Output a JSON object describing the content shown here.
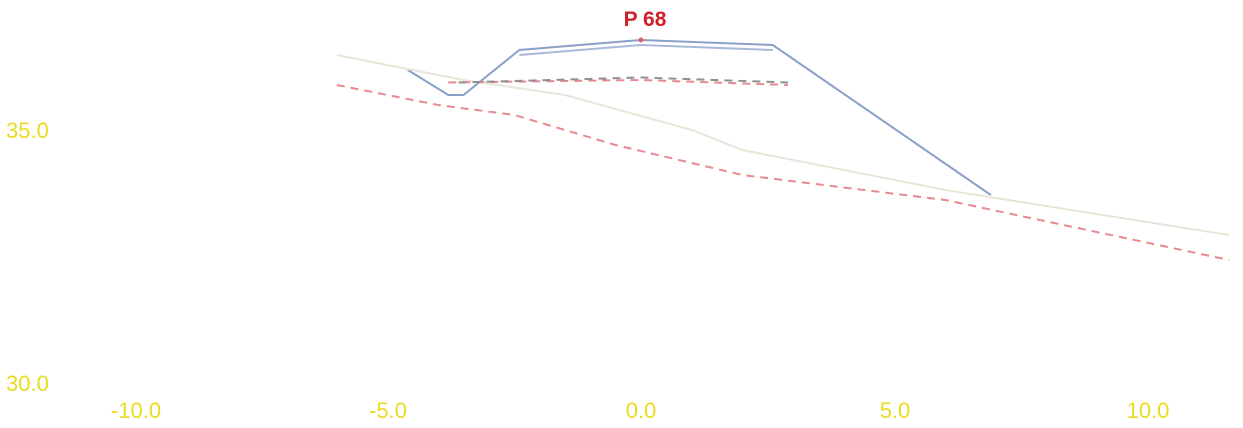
{
  "section": {
    "title": "P 68",
    "title_color": "#d0202a",
    "axis_label_color": "#e8dc1e",
    "x_axis": {
      "range": [
        -10.5,
        11.6
      ],
      "tick_labels": [
        "-10.0",
        "-5.0",
        "0.0",
        "5.0",
        "10.0"
      ],
      "tick_values": [
        -10,
        -5,
        0,
        5,
        10
      ]
    },
    "y_axis": {
      "range": [
        30,
        37.3
      ],
      "tick_labels": [
        "35.0",
        "30.0"
      ],
      "tick_values": [
        35,
        30
      ]
    }
  },
  "chart_data": {
    "type": "line",
    "series": [
      {
        "key": "design",
        "color": "#8aa0c8",
        "style": "solid",
        "points": [
          [
            -4.6,
            36.2
          ],
          [
            -3.8,
            35.7
          ],
          [
            -3.5,
            35.7
          ],
          [
            -2.4,
            36.6
          ],
          [
            0,
            36.8
          ],
          [
            2.6,
            36.7
          ],
          [
            6.9,
            33.7
          ]
        ]
      },
      {
        "key": "design-inner",
        "color": "#a8b8d8",
        "style": "solid",
        "points": [
          [
            -2.4,
            36.5
          ],
          [
            0,
            36.7
          ],
          [
            2.6,
            36.6
          ]
        ]
      },
      {
        "key": "existing-ground",
        "color": "#e8e4d8",
        "style": "solid",
        "points": [
          [
            -6,
            36.5
          ],
          [
            -3.5,
            36.0
          ],
          [
            -1.5,
            35.7
          ],
          [
            1,
            35.0
          ],
          [
            2,
            34.6
          ],
          [
            6,
            33.8
          ],
          [
            11.6,
            32.9
          ]
        ]
      },
      {
        "key": "subgrade",
        "color": "#e88890",
        "style": "dashed",
        "points": [
          [
            -6,
            35.9
          ],
          [
            -4,
            35.5
          ],
          [
            -2.5,
            35.3
          ],
          [
            -0.5,
            34.7
          ],
          [
            2,
            34.1
          ],
          [
            6,
            33.6
          ],
          [
            11.6,
            32.4
          ]
        ]
      },
      {
        "key": "subgrade-top",
        "color": "#e88890",
        "style": "dashed",
        "points": [
          [
            -3.8,
            35.95
          ],
          [
            0,
            36.0
          ],
          [
            2.9,
            35.9
          ]
        ]
      },
      {
        "key": "reference",
        "color": "#909090",
        "style": "dashed",
        "points": [
          [
            -3.6,
            35.95
          ],
          [
            0,
            36.05
          ],
          [
            2.9,
            35.95
          ]
        ]
      }
    ],
    "markers": [
      {
        "x": 0,
        "y": 36.8,
        "color": "#e06070"
      }
    ]
  }
}
